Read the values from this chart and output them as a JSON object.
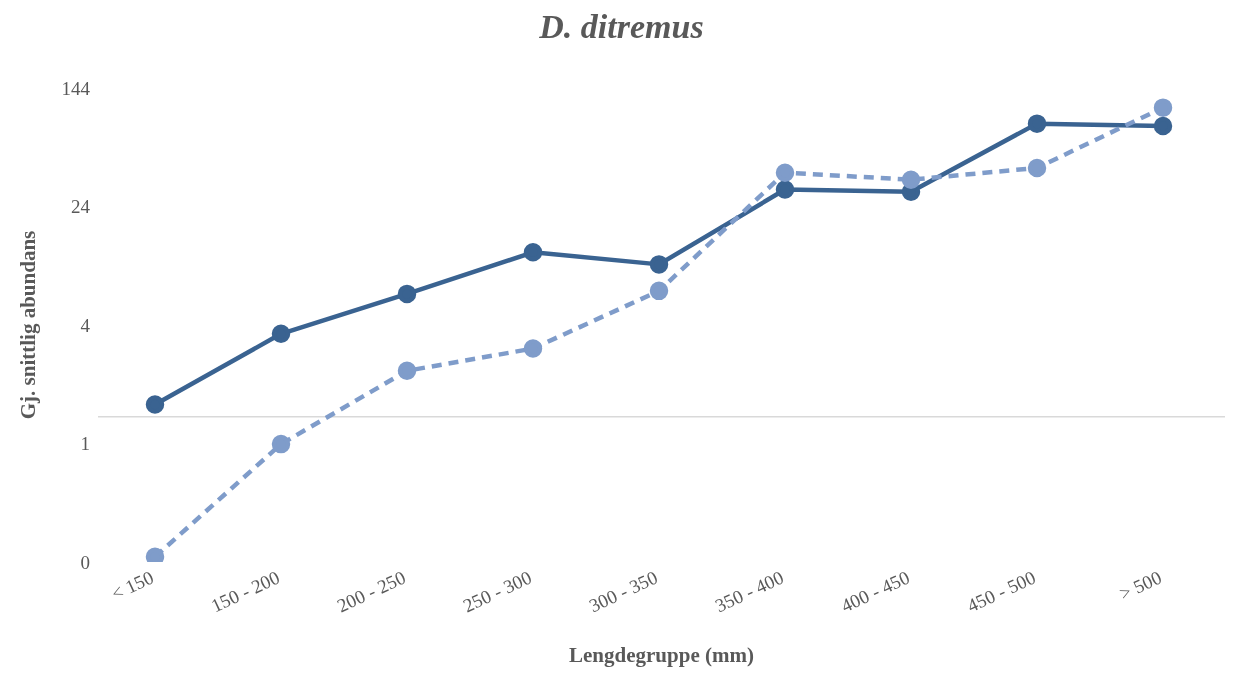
{
  "chart_data": {
    "type": "line",
    "title": "D. ditremus",
    "xlabel": "Lengdegruppe (mm)",
    "ylabel": "Gj. snittlig abundans",
    "categories": [
      "< 150",
      "150 - 200",
      "200 - 250",
      "250 - 300",
      "300 - 350",
      "350 - 400",
      "400 - 450",
      "450 - 500",
      "> 500"
    ],
    "series": [
      {
        "color": "#3a6391",
        "line_style": "solid",
        "values": [
          1.2,
          3.5,
          6.4,
          12,
          10,
          31,
          30,
          84,
          81
        ]
      },
      {
        "color": "#7f9cca",
        "line_style": "dashed",
        "values": [
          0.12,
          0.66,
          2,
          2.8,
          6.7,
          40,
          36,
          43,
          107
        ]
      }
    ],
    "log": true,
    "ylim": [
      0.111,
      144
    ],
    "yticks": [
      {
        "value": 0.111,
        "label": "0"
      },
      {
        "value": 0.667,
        "label": "1"
      },
      {
        "value": 4,
        "label": "4"
      },
      {
        "value": 24,
        "label": "24"
      },
      {
        "value": 144,
        "label": "144"
      }
    ],
    "ref_lines": [
      {
        "axis": "y",
        "value": 1,
        "color": "#d9d9d9"
      }
    ],
    "marker": "circle",
    "grid": false,
    "legend": false
  }
}
